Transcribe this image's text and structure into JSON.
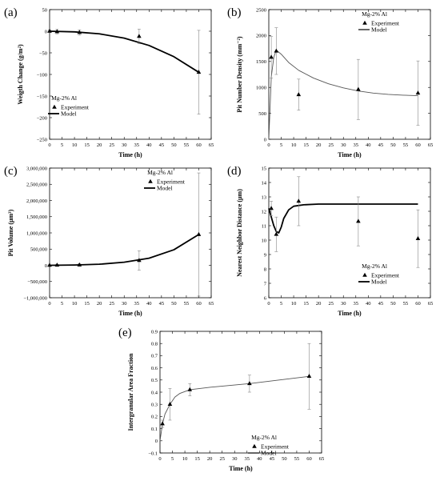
{
  "chart_data": [
    {
      "type": "scatter",
      "panel_label": "(a)",
      "xlabel": "Time (h)",
      "ylabel": "Weigth Change (g/m²)",
      "xlim": [
        0,
        65
      ],
      "ylim": [
        -250,
        50
      ],
      "xticks": [
        0,
        5,
        10,
        15,
        20,
        25,
        30,
        35,
        40,
        45,
        50,
        55,
        60,
        65
      ],
      "yticks": [
        -250,
        -200,
        -150,
        -100,
        -50,
        0,
        50
      ],
      "ytick_labels": [
        "−250",
        "−200",
        "−150",
        "−100",
        "−50",
        "0",
        "50"
      ],
      "legend": {
        "title": "Mg-2% Al",
        "experiment": "Experiment",
        "model": "Model",
        "position": "bottom-left"
      },
      "experiment": {
        "x": [
          0,
          3,
          12,
          36,
          60
        ],
        "y": [
          0,
          -1,
          -3,
          -12,
          -95
        ],
        "err": [
          3,
          5,
          6,
          17,
          97
        ]
      },
      "model": {
        "x": [
          0,
          10,
          20,
          30,
          40,
          50,
          60
        ],
        "y": [
          0,
          -1.5,
          -6,
          -16,
          -33,
          -59,
          -95
        ],
        "style": "thick"
      }
    },
    {
      "type": "scatter",
      "panel_label": "(b)",
      "xlabel": "Time (h)",
      "ylabel": "Pit Number Density (mm⁻²)",
      "xlim": [
        0,
        65
      ],
      "ylim": [
        0,
        2500
      ],
      "xticks": [
        0,
        5,
        10,
        15,
        20,
        25,
        30,
        35,
        40,
        45,
        50,
        55,
        60,
        65
      ],
      "yticks": [
        0,
        500,
        1000,
        1500,
        2000,
        2500
      ],
      "ytick_labels": [
        "0",
        "500",
        "1000",
        "1500",
        "2000",
        "2500"
      ],
      "legend": {
        "title": "Mg-2% Al",
        "experiment": "Experiment",
        "model": "Model",
        "position": "top-right"
      },
      "experiment": {
        "x": [
          1,
          3,
          12,
          36,
          60
        ],
        "y": [
          1580,
          1700,
          860,
          960,
          890
        ],
        "err": [
          400,
          450,
          300,
          580,
          620
        ]
      },
      "model": {
        "x": [
          0,
          1,
          2,
          3,
          5,
          8,
          12,
          18,
          24,
          30,
          36,
          42,
          48,
          54,
          60
        ],
        "y": [
          0,
          1200,
          1580,
          1720,
          1640,
          1480,
          1330,
          1180,
          1070,
          990,
          930,
          890,
          865,
          850,
          840
        ],
        "style": "thin"
      }
    },
    {
      "type": "scatter",
      "panel_label": "(c)",
      "xlabel": "Time (h)",
      "ylabel": "Pit Volume (μm³)",
      "xlim": [
        0,
        65
      ],
      "ylim": [
        -1000000,
        3000000
      ],
      "xticks": [
        0,
        5,
        10,
        15,
        20,
        25,
        30,
        35,
        40,
        45,
        50,
        55,
        60,
        65
      ],
      "yticks": [
        -1000000,
        -500000,
        0,
        500000,
        1000000,
        1500000,
        2000000,
        2500000,
        3000000
      ],
      "ytick_labels": [
        "−1,000,000",
        "−500,000",
        "0",
        "500,000",
        "1,000,000",
        "1,500,000",
        "2,000,000",
        "2,500,000",
        "3,000,000"
      ],
      "legend": {
        "title": "Mg-2% Al",
        "experiment": "Experiment",
        "model": "Model",
        "position": "top-center"
      },
      "experiment": {
        "x": [
          0,
          3,
          12,
          36,
          60
        ],
        "y": [
          0,
          3000,
          10000,
          150000,
          950000
        ],
        "err": [
          20000,
          30000,
          40000,
          300000,
          1900000
        ]
      },
      "model": {
        "x": [
          0,
          10,
          20,
          30,
          40,
          50,
          60
        ],
        "y": [
          0,
          9000,
          33000,
          95000,
          220000,
          480000,
          950000
        ],
        "style": "thick"
      }
    },
    {
      "type": "scatter",
      "panel_label": "(d)",
      "xlabel": "Time (h)",
      "ylabel": "Nearest Neighbor Distance (μm)",
      "xlim": [
        0,
        65
      ],
      "ylim": [
        6,
        15
      ],
      "xticks": [
        0,
        5,
        10,
        15,
        20,
        25,
        30,
        35,
        40,
        45,
        50,
        55,
        60,
        65
      ],
      "yticks": [
        6,
        7,
        8,
        9,
        10,
        11,
        12,
        13,
        14,
        15
      ],
      "ytick_labels": [
        "6",
        "7",
        "8",
        "9",
        "10",
        "11",
        "12",
        "13",
        "14",
        "15"
      ],
      "legend": {
        "title": "Mg-2% Al",
        "experiment": "Experiment",
        "model": "Model",
        "position": "bottom-right"
      },
      "experiment": {
        "x": [
          1,
          3,
          12,
          36,
          60
        ],
        "y": [
          12.2,
          10.4,
          12.7,
          11.3,
          10.1
        ],
        "err": [
          0.5,
          1.2,
          1.7,
          1.7,
          2.0
        ]
      },
      "model": {
        "x": [
          0,
          1,
          2,
          3,
          4,
          5,
          6,
          8,
          10,
          14,
          20,
          30,
          45,
          60
        ],
        "y": [
          12.2,
          11.6,
          11.0,
          10.6,
          10.5,
          10.9,
          11.5,
          12.1,
          12.35,
          12.45,
          12.5,
          12.5,
          12.5,
          12.5
        ],
        "style": "thick"
      }
    },
    {
      "type": "scatter",
      "panel_label": "(e)",
      "xlabel": "Time (h)",
      "ylabel": "Intergranular Area Fraction",
      "xlim": [
        0,
        65
      ],
      "ylim": [
        -0.1,
        0.9
      ],
      "xticks": [
        0,
        5,
        10,
        15,
        20,
        25,
        30,
        35,
        40,
        45,
        50,
        55,
        60,
        65
      ],
      "yticks": [
        -0.1,
        0,
        0.1,
        0.2,
        0.3,
        0.4,
        0.5,
        0.6,
        0.7,
        0.8,
        0.9
      ],
      "ytick_labels": [
        "−0.1",
        "0",
        "0.1",
        "0.2",
        "0.3",
        "0.4",
        "0.5",
        "0.6",
        "0.7",
        "0.8",
        "0.9"
      ],
      "legend": {
        "title": "Mg-2% Al",
        "experiment": "Experiment",
        "model": "Model",
        "position": "bottom-right"
      },
      "experiment": {
        "x": [
          1,
          4,
          12,
          36,
          60
        ],
        "y": [
          0.14,
          0.3,
          0.42,
          0.47,
          0.53
        ],
        "err": [
          0.03,
          0.13,
          0.05,
          0.07,
          0.27
        ]
      },
      "model": {
        "x": [
          0,
          1,
          2,
          4,
          6,
          8,
          12,
          20,
          36,
          60
        ],
        "y": [
          0,
          0.14,
          0.22,
          0.3,
          0.36,
          0.39,
          0.42,
          0.44,
          0.47,
          0.53
        ],
        "style": "thin"
      }
    }
  ]
}
